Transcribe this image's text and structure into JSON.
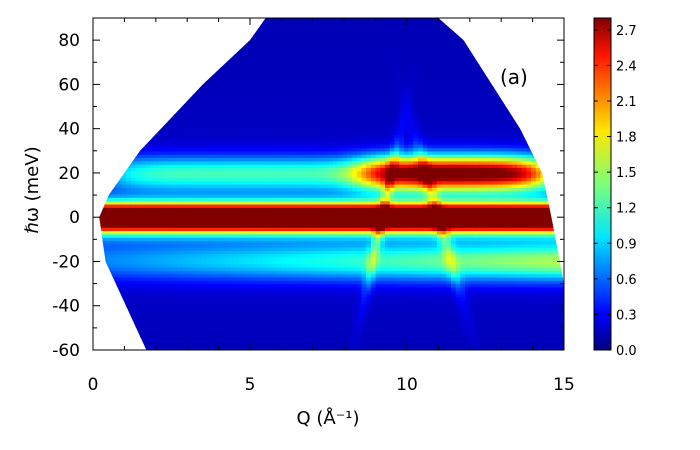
{
  "chart_data": {
    "type": "heatmap",
    "panel_label": "(a)",
    "xlabel": "Q (Å⁻¹)",
    "ylabel": "ℏω (meV)",
    "xlim": [
      0,
      15
    ],
    "ylim": [
      -60,
      90
    ],
    "x_ticks": [
      "0",
      "5",
      "10",
      "15"
    ],
    "y_ticks": [
      "80",
      "60",
      "40",
      "20",
      "0",
      "-20",
      "-40",
      "-60"
    ],
    "colorbar": {
      "range": [
        0.0,
        2.8
      ],
      "ticks": [
        "2.7",
        "2.4",
        "2.1",
        "1.8",
        "1.5",
        "1.2",
        "0.9",
        "0.6",
        "0.3",
        "0.0"
      ],
      "colormap": "jet"
    },
    "coverage": {
      "left_edge": [
        [
          1.7,
          -60
        ],
        [
          0.4,
          -20
        ],
        [
          0.2,
          0
        ],
        [
          0.5,
          10
        ],
        [
          1.5,
          30
        ],
        [
          3.5,
          60
        ],
        [
          5.0,
          80
        ],
        [
          5.5,
          90
        ]
      ],
      "right_edge": [
        [
          11.0,
          90
        ],
        [
          11.8,
          80
        ],
        [
          13.6,
          40
        ],
        [
          14.3,
          20
        ],
        [
          14.6,
          0
        ],
        [
          15.0,
          -30
        ],
        [
          15.0,
          -60
        ]
      ]
    },
    "features": [
      {
        "name": "elastic line",
        "energy": 0,
        "intensity": 2.8
      },
      {
        "name": "inelastic band",
        "energy": 20,
        "q_range": [
          8.5,
          14.5
        ],
        "intensity": 2.8
      },
      {
        "name": "inelastic band",
        "energy": 20,
        "q_range": [
          0.5,
          8.0
        ],
        "intensity": 1.0
      },
      {
        "name": "negative energy band",
        "energy": -20,
        "intensity": 1.3
      },
      {
        "name": "background",
        "intensity": 0.15
      }
    ]
  }
}
